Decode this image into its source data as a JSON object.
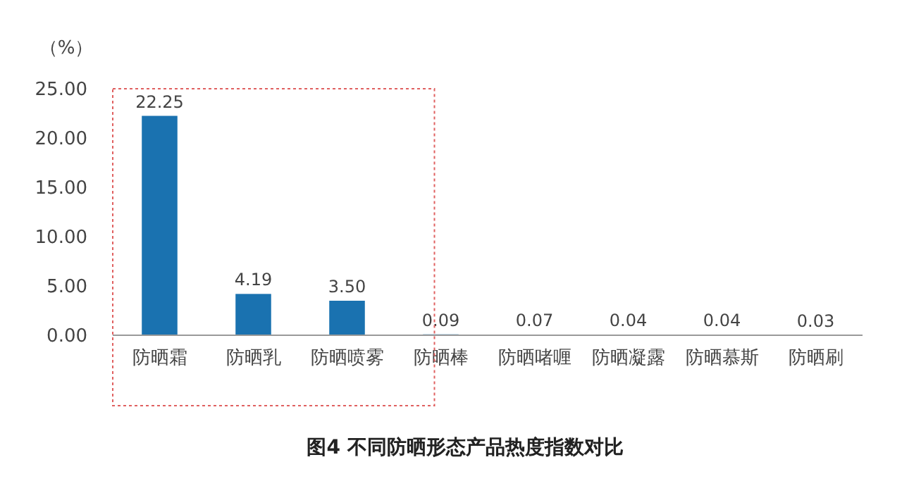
{
  "chart_data": {
    "type": "bar",
    "title": "图4 不同防晒形态产品热度指数对比",
    "ylabel": "（%）",
    "categories": [
      "防晒霜",
      "防晒乳",
      "防晒喷雾",
      "防晒棒",
      "防晒啫喱",
      "防晒凝露",
      "防晒慕斯",
      "防晒刷"
    ],
    "values": [
      22.25,
      4.19,
      3.5,
      0.09,
      0.07,
      0.04,
      0.04,
      0.03
    ],
    "color": "#1a72b0",
    "ylim": [
      0,
      25
    ],
    "yticks": [
      {
        "value": 0,
        "label": "0.00"
      },
      {
        "value": 5,
        "label": "5.00"
      },
      {
        "value": 10,
        "label": "10.00"
      },
      {
        "value": 15,
        "label": "15.00"
      },
      {
        "value": 20,
        "label": "20.00"
      },
      {
        "value": 25,
        "label": "25.00"
      }
    ],
    "value_labels": [
      "22.25",
      "4.19",
      "3.50",
      "0.09",
      "0.07",
      "0.04",
      "0.04",
      "0.03"
    ],
    "grid": false
  }
}
